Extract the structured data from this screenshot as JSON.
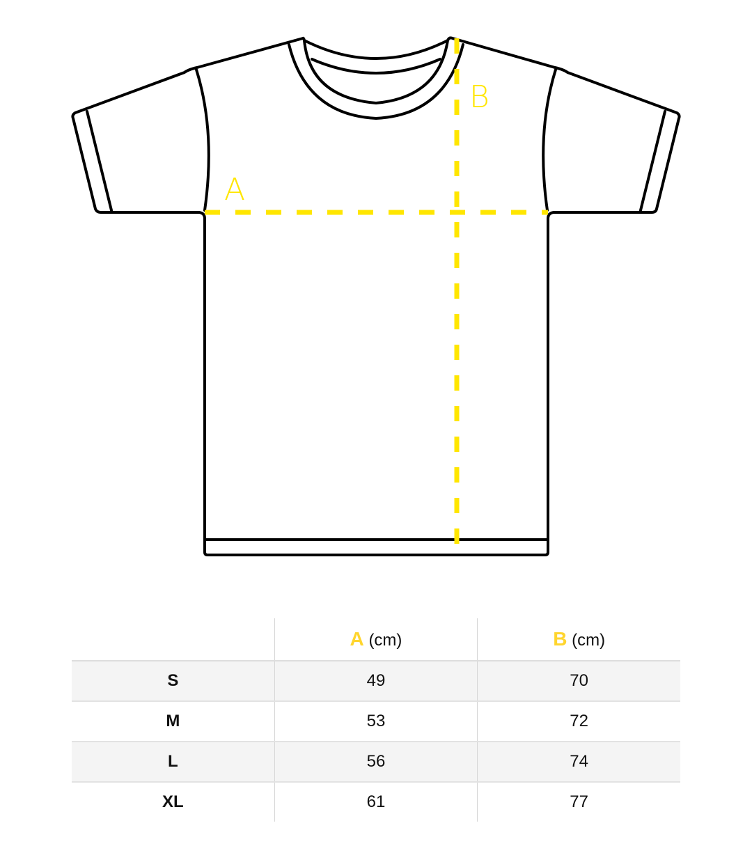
{
  "diagram": {
    "measure_a_label": "A",
    "measure_b_label": "B",
    "accent_color": "#ffe600",
    "outline_color": "#000000"
  },
  "table": {
    "headers": [
      {
        "key": "",
        "unit": ""
      },
      {
        "key": "A",
        "unit": "(cm)"
      },
      {
        "key": "B",
        "unit": "(cm)"
      }
    ],
    "rows": [
      {
        "size": "S",
        "a": "49",
        "b": "70"
      },
      {
        "size": "M",
        "a": "53",
        "b": "72"
      },
      {
        "size": "L",
        "a": "56",
        "b": "74"
      },
      {
        "size": "XL",
        "a": "61",
        "b": "77"
      }
    ],
    "key_color": "#ffd52e",
    "stripe_color": "#f4f4f4"
  }
}
